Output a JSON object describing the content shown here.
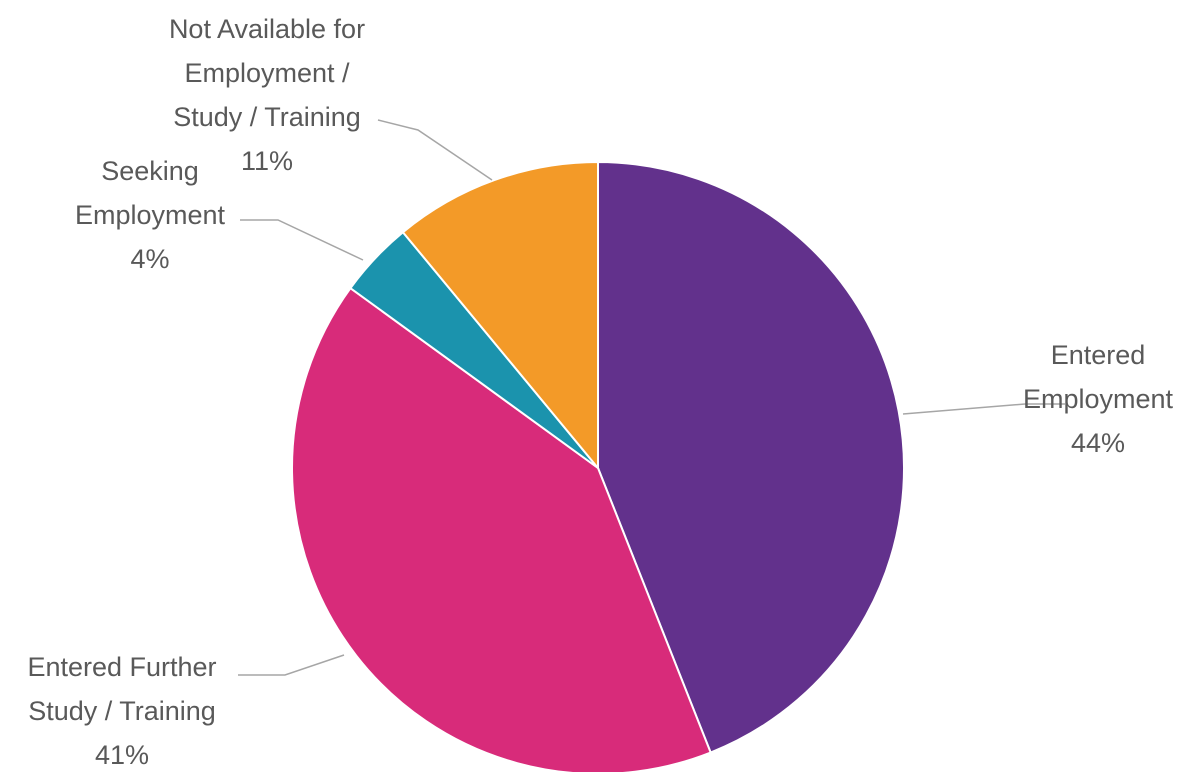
{
  "chart_data": {
    "type": "pie",
    "slices": [
      {
        "label_lines": [
          "Entered",
          "Employment"
        ],
        "pct_label": "44%",
        "value": 44,
        "color": "#62318c"
      },
      {
        "label_lines": [
          "Entered Further",
          "Study / Training"
        ],
        "pct_label": "41%",
        "value": 41,
        "color": "#d82b7a"
      },
      {
        "label_lines": [
          "Seeking",
          "Employment"
        ],
        "pct_label": "4%",
        "value": 4,
        "color": "#1b93ad"
      },
      {
        "label_lines": [
          "Not Available for",
          "Employment /",
          "Study / Training"
        ],
        "pct_label": "11%",
        "value": 11,
        "color": "#f39a28"
      }
    ],
    "start": "12 o'clock",
    "direction": "clockwise",
    "legend": "none"
  }
}
